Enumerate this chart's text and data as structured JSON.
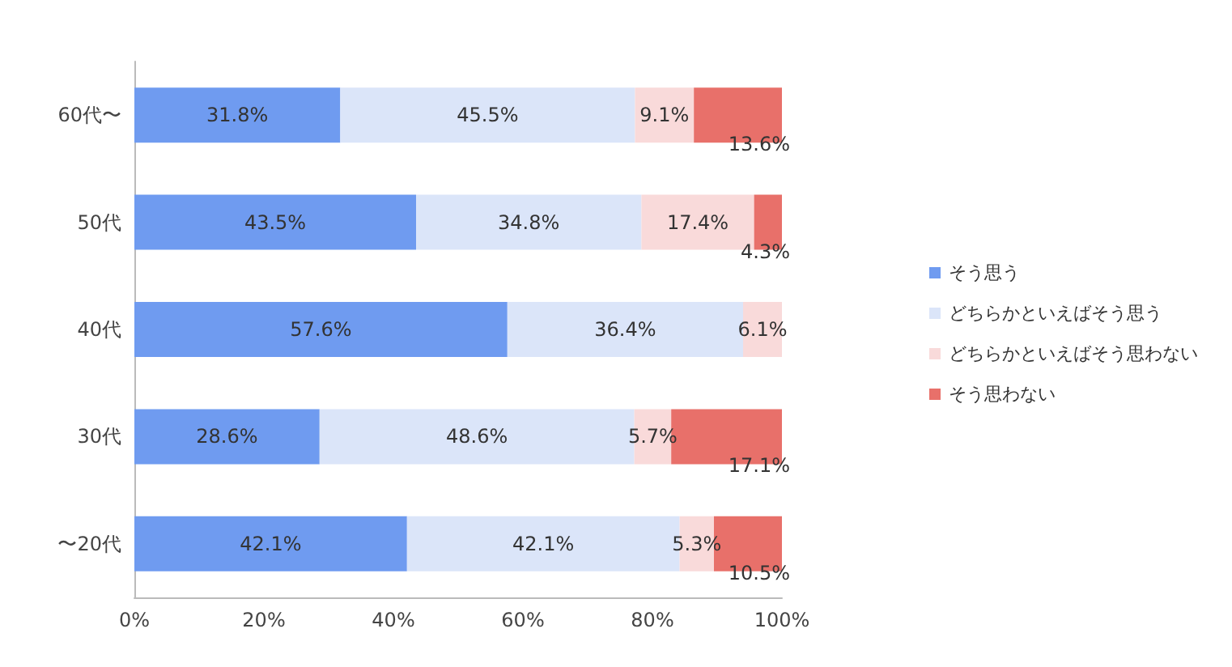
{
  "chart_data": {
    "type": "bar",
    "orientation": "horizontal",
    "stacked": true,
    "legend": "right",
    "grid": false,
    "categories": [
      "60代〜",
      "50代",
      "40代",
      "30代",
      "〜20代"
    ],
    "xlim": [
      0,
      100
    ],
    "xticks": [
      {
        "value": 0,
        "label": "0%"
      },
      {
        "value": 20,
        "label": "20%"
      },
      {
        "value": 40,
        "label": "40%"
      },
      {
        "value": 60,
        "label": "60%"
      },
      {
        "value": 80,
        "label": "80%"
      },
      {
        "value": 100,
        "label": "100%"
      }
    ],
    "series": [
      {
        "name": "そう思う",
        "color": "#6f9bf0",
        "values": [
          31.8,
          43.5,
          57.6,
          28.6,
          42.1
        ],
        "value_labels": [
          "31.8%",
          "43.5%",
          "57.6%",
          "28.6%",
          "42.1%"
        ]
      },
      {
        "name": "どちらかといえばそう思う",
        "color": "#dbe5f9",
        "values": [
          45.5,
          34.8,
          36.4,
          48.6,
          42.1
        ],
        "value_labels": [
          "45.5%",
          "34.8%",
          "36.4%",
          "48.6%",
          "42.1%"
        ]
      },
      {
        "name": "どちらかといえばそう思わない",
        "color": "#f9dada",
        "values": [
          9.1,
          17.4,
          6.1,
          5.7,
          5.3
        ],
        "value_labels": [
          "9.1%",
          "17.4%",
          "6.1%",
          "5.7%",
          "5.3%"
        ]
      },
      {
        "name": "そう思わない",
        "color": "#e8706a",
        "values": [
          13.6,
          4.3,
          null,
          17.1,
          10.5
        ],
        "value_labels": [
          "13.6%",
          "4.3%",
          null,
          "17.1%",
          "10.5%"
        ]
      }
    ]
  }
}
